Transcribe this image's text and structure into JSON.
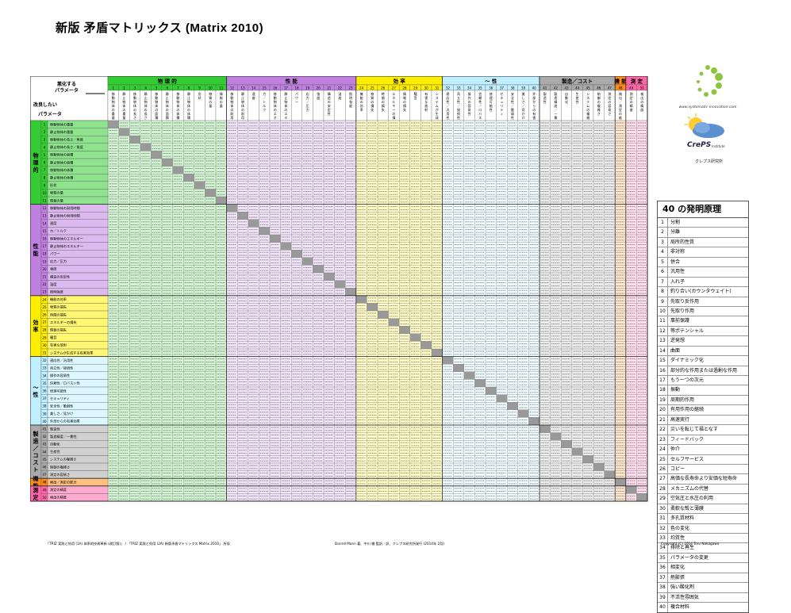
{
  "title": "新版 矛盾マトリックス (Matrix 2010)",
  "corner": {
    "improve_top": "悪化する",
    "improve_sub": "パラメータ",
    "worsen_top": "改良したい",
    "worsen_sub": "パラメータ"
  },
  "categories": [
    {
      "label": "物 理 的",
      "cols": 11,
      "color": "#33cc33"
    },
    {
      "label": "性 能",
      "cols": 12,
      "color": "#c080e0"
    },
    {
      "label": "効 率",
      "cols": 8,
      "color": "#ffee00"
    },
    {
      "label": "～ 性",
      "cols": 9,
      "color": "#c0f0ff"
    },
    {
      "label": "製造／コスト",
      "cols": 7,
      "color": "#aaaaaa"
    },
    {
      "label": "機 能",
      "cols": 1,
      "color": "#ff8c1a"
    },
    {
      "label": "測 定",
      "cols": 2,
      "color": "#ff66aa"
    }
  ],
  "row_groups": [
    {
      "label": "物 理 的",
      "rows": 11,
      "color": "#33cc33"
    },
    {
      "label": "性 能",
      "rows": 12,
      "color": "#c080e0"
    },
    {
      "label": "効 率",
      "rows": 8,
      "color": "#ffee00"
    },
    {
      "label": "～ 性",
      "rows": 9,
      "color": "#c0f0ff"
    },
    {
      "label": "製造／コスト",
      "rows": 7,
      "color": "#aaaaaa"
    },
    {
      "label": "機 能",
      "rows": 1,
      "color": "#ff8c1a"
    },
    {
      "label": "測 定",
      "rows": 2,
      "color": "#ff66aa"
    }
  ],
  "row_params": [
    "移動物体の重量",
    "静止物体の重量",
    "移動物体の長さ／角度",
    "静止物体の長さ／角度",
    "移動物体の面積",
    "静止物体の面積",
    "移動物体の体積",
    "静止物体の体積",
    "形状",
    "物質の量",
    "情報の量",
    "移動物体の耐用時間",
    "静止物体の耐用時間",
    "速度",
    "力／トルク",
    "移動物体のエネルギー",
    "静止物体のエネルギー",
    "パワー",
    "応力／圧力",
    "強度",
    "構造の安定性",
    "温度",
    "照明強度",
    "機能の効率",
    "物質の損失",
    "時間の損失",
    "エネルギーの損失",
    "情報の損失",
    "騒音",
    "有害な放射",
    "システムが生成する有害効果",
    "適応性／汎用性",
    "両立性／接続性",
    "操作の容易性",
    "信頼性／ロバスト性",
    "修理可能性",
    "セキュリティ",
    "安全性／脆弱性",
    "美しさ／見かけ",
    "外部からの有害効果",
    "製造性",
    "製造精度／一貫性",
    "自動化",
    "生産性",
    "システムの複雑さ",
    "制御の複雑さ",
    "測定の容易さ",
    "検出／測定の能力",
    "測定の精度",
    "検出の精度"
  ],
  "legend": {
    "title": "40 の発明原理",
    "items": [
      "分割",
      "分離",
      "局所的性質",
      "非対称",
      "併合",
      "汎用性",
      "入れ子",
      "釣り合い(カウンタウェイト)",
      "先取り反作用",
      "先取り作用",
      "事前保護",
      "等ポテンシャル",
      "逆発想",
      "曲面",
      "ダイナミック化",
      "部分的な作用または過剰な作用",
      "もう一つの次元",
      "振動",
      "周期的作用",
      "有用作用の継続",
      "高速実行",
      "災いを転じて福となす",
      "フィードバック",
      "仲介",
      "セルフサービス",
      "コピー",
      "高価な長寿命より安価な短寿命",
      "メカニズムの代替",
      "空気圧と水圧の利用",
      "柔軟な殻と薄膜",
      "多孔質材料",
      "色の変化",
      "均質性",
      "排除と再生",
      "パラメータの変更",
      "相変化",
      "熱膨張",
      "強い酸化剤",
      "不活性雰囲気",
      "複合材料"
    ]
  },
  "logo": {
    "url": "www.systematic-innovation.com",
    "brand": "CrePS",
    "brand_sub": "Institute",
    "jp": "クレプス研究所"
  },
  "footer": {
    "left": "「TRIZ 実践と効用 (1A) 体系的技術革新 (改訂版)」 / 「TRIZ 実践と効用 (2A) 新版矛盾マトリックス Matrix 2010」 所収",
    "mid": "Darrell Mann 著、中川 徹 監訳／訳、クレプス研究所発行 (2014年 2月)",
    "right": "Copyright (C) 2014 Toru Nakagawa"
  }
}
